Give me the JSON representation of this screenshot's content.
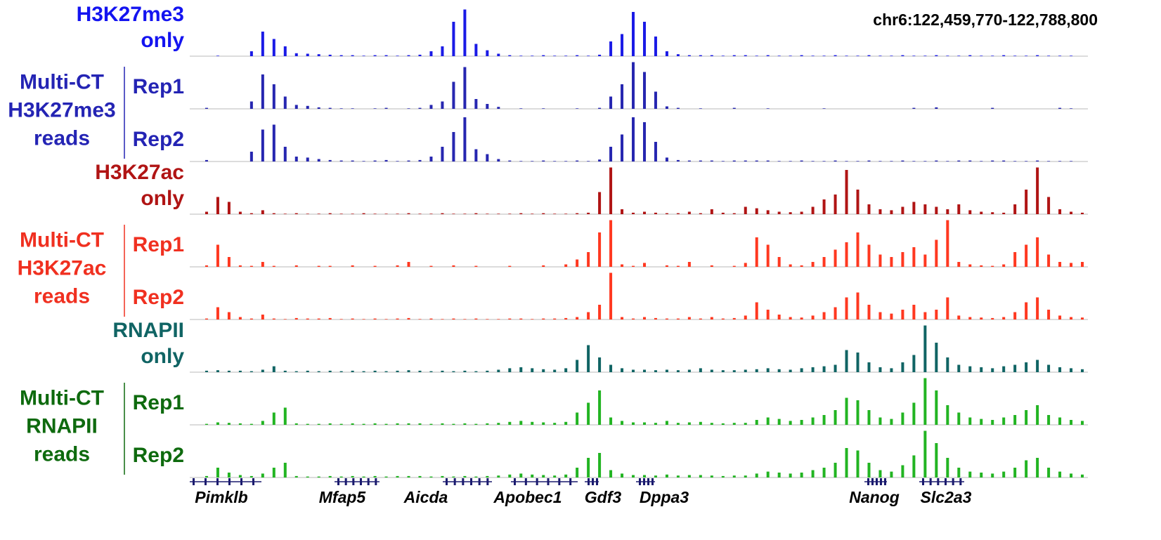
{
  "region": "chr6:122,459,770-122,788,800",
  "blocks": [
    {
      "label": [
        "H3K27me3",
        "only"
      ],
      "label_color": "#1414f0",
      "color": "#1a1ae6",
      "signal": [
        0,
        0,
        1,
        0,
        0,
        10,
        50,
        35,
        20,
        6,
        5,
        4,
        3,
        2,
        2,
        1,
        2,
        2,
        1,
        2,
        3,
        10,
        20,
        70,
        95,
        25,
        12,
        5,
        2,
        1,
        1,
        2,
        1,
        1,
        2,
        1,
        3,
        30,
        45,
        90,
        70,
        40,
        10,
        4,
        2,
        2,
        2,
        1,
        2,
        2,
        1,
        2,
        1,
        1,
        2,
        1,
        1,
        2,
        1,
        1,
        2,
        1,
        1,
        2,
        1,
        1,
        2,
        1,
        1,
        2,
        1,
        1,
        2,
        1,
        1,
        2,
        1,
        1,
        1,
        0
      ]
    },
    {
      "label": [
        "Multi-CT",
        "H3K27me3",
        "reads"
      ],
      "label_color": "#2424b4",
      "color": "#2626b0",
      "reps": [
        {
          "label": "Rep1",
          "signal": [
            0,
            2,
            0,
            0,
            0,
            15,
            70,
            50,
            25,
            8,
            6,
            3,
            2,
            1,
            1,
            0,
            1,
            2,
            0,
            1,
            2,
            8,
            15,
            55,
            85,
            20,
            10,
            4,
            0,
            1,
            0,
            1,
            0,
            0,
            1,
            0,
            2,
            25,
            50,
            95,
            75,
            35,
            5,
            2,
            0,
            1,
            0,
            0,
            2,
            0,
            0,
            1,
            0,
            0,
            0,
            0,
            1,
            0,
            0,
            0,
            0,
            0,
            0,
            0,
            2,
            0,
            3,
            0,
            0,
            0,
            0,
            2,
            0,
            0,
            0,
            0,
            0,
            2,
            1,
            0
          ]
        },
        {
          "label": "Rep2",
          "signal": [
            0,
            3,
            0,
            0,
            0,
            20,
            65,
            75,
            30,
            10,
            8,
            5,
            3,
            2,
            2,
            1,
            2,
            3,
            1,
            2,
            3,
            10,
            30,
            60,
            90,
            25,
            15,
            5,
            2,
            1,
            1,
            2,
            1,
            1,
            2,
            1,
            4,
            30,
            55,
            90,
            80,
            40,
            8,
            3,
            2,
            2,
            2,
            1,
            2,
            2,
            2,
            2,
            1,
            1,
            2,
            1,
            1,
            2,
            1,
            1,
            2,
            1,
            1,
            2,
            1,
            1,
            2,
            1,
            2,
            2,
            1,
            2,
            2,
            1,
            1,
            2,
            1,
            1,
            1,
            0
          ]
        }
      ]
    },
    {
      "label": [
        "H3K27ac",
        "only"
      ],
      "label_color": "#b01414",
      "color": "#b01414",
      "signal": [
        0,
        5,
        35,
        25,
        5,
        2,
        8,
        2,
        1,
        2,
        1,
        1,
        2,
        1,
        1,
        2,
        1,
        1,
        1,
        2,
        1,
        1,
        2,
        1,
        1,
        2,
        1,
        1,
        1,
        2,
        1,
        2,
        1,
        1,
        2,
        3,
        45,
        95,
        10,
        3,
        5,
        3,
        2,
        2,
        5,
        2,
        10,
        3,
        2,
        15,
        12,
        8,
        5,
        4,
        5,
        15,
        30,
        40,
        90,
        50,
        20,
        10,
        8,
        15,
        25,
        20,
        15,
        10,
        20,
        8,
        5,
        4,
        3,
        20,
        50,
        95,
        35,
        10,
        5,
        3
      ]
    },
    {
      "label": [
        "Multi-CT",
        "H3K27ac",
        "reads"
      ],
      "label_color": "#f03020",
      "color": "#ff3820",
      "reps": [
        {
          "label": "Rep1",
          "signal": [
            0,
            3,
            45,
            20,
            3,
            2,
            10,
            2,
            0,
            3,
            0,
            2,
            2,
            0,
            3,
            0,
            2,
            0,
            3,
            10,
            0,
            2,
            0,
            3,
            0,
            2,
            0,
            0,
            2,
            0,
            0,
            3,
            0,
            5,
            15,
            30,
            70,
            95,
            5,
            2,
            8,
            0,
            3,
            2,
            10,
            0,
            3,
            0,
            2,
            8,
            60,
            45,
            20,
            5,
            3,
            10,
            20,
            35,
            50,
            70,
            45,
            25,
            20,
            30,
            40,
            25,
            55,
            95,
            10,
            5,
            3,
            2,
            5,
            30,
            45,
            60,
            25,
            10,
            8,
            10
          ]
        },
        {
          "label": "Rep2",
          "signal": [
            0,
            2,
            25,
            15,
            5,
            2,
            10,
            2,
            1,
            3,
            2,
            2,
            3,
            1,
            2,
            1,
            2,
            1,
            2,
            3,
            1,
            2,
            1,
            2,
            1,
            2,
            1,
            1,
            2,
            2,
            1,
            2,
            2,
            3,
            5,
            15,
            30,
            95,
            5,
            2,
            5,
            3,
            2,
            2,
            5,
            2,
            5,
            2,
            3,
            8,
            35,
            20,
            10,
            5,
            4,
            8,
            15,
            25,
            45,
            55,
            30,
            15,
            12,
            20,
            30,
            15,
            20,
            45,
            8,
            5,
            4,
            3,
            5,
            15,
            35,
            45,
            20,
            8,
            5,
            4
          ]
        }
      ]
    },
    {
      "label": [
        "RNAPII",
        "only"
      ],
      "label_color": "#106464",
      "color": "#106464",
      "signal": [
        0,
        3,
        4,
        3,
        3,
        2,
        5,
        12,
        3,
        2,
        3,
        2,
        3,
        2,
        3,
        2,
        3,
        2,
        3,
        4,
        3,
        2,
        3,
        2,
        3,
        2,
        3,
        5,
        8,
        10,
        8,
        6,
        5,
        8,
        25,
        55,
        30,
        15,
        8,
        5,
        5,
        4,
        5,
        4,
        5,
        8,
        5,
        4,
        4,
        5,
        6,
        8,
        6,
        5,
        8,
        10,
        12,
        15,
        45,
        40,
        20,
        10,
        8,
        20,
        35,
        95,
        60,
        30,
        15,
        12,
        10,
        8,
        12,
        15,
        20,
        25,
        15,
        10,
        8,
        6
      ]
    },
    {
      "label": [
        "Multi-CT",
        "RNAPII",
        "reads"
      ],
      "label_color": "#0e6a0e",
      "color": "#22b422",
      "reps": [
        {
          "label": "Rep1",
          "signal": [
            0,
            2,
            5,
            4,
            3,
            2,
            8,
            25,
            35,
            3,
            2,
            2,
            3,
            2,
            3,
            2,
            3,
            2,
            3,
            3,
            3,
            2,
            3,
            2,
            3,
            2,
            3,
            4,
            6,
            8,
            6,
            5,
            4,
            6,
            25,
            45,
            70,
            15,
            8,
            5,
            5,
            4,
            8,
            4,
            5,
            6,
            4,
            3,
            4,
            4,
            10,
            15,
            12,
            8,
            10,
            15,
            20,
            30,
            55,
            50,
            30,
            15,
            12,
            25,
            45,
            95,
            70,
            40,
            25,
            15,
            12,
            10,
            15,
            20,
            30,
            40,
            20,
            15,
            10,
            8
          ]
        },
        {
          "label": "Rep2",
          "signal": [
            0,
            3,
            20,
            10,
            5,
            3,
            8,
            20,
            30,
            3,
            2,
            2,
            3,
            2,
            3,
            2,
            3,
            2,
            3,
            3,
            3,
            2,
            3,
            2,
            3,
            2,
            3,
            4,
            6,
            8,
            6,
            5,
            4,
            6,
            20,
            40,
            50,
            15,
            8,
            5,
            5,
            4,
            6,
            4,
            5,
            5,
            4,
            3,
            4,
            4,
            8,
            12,
            10,
            8,
            10,
            15,
            20,
            30,
            60,
            55,
            30,
            15,
            12,
            25,
            45,
            95,
            70,
            40,
            20,
            12,
            10,
            8,
            12,
            20,
            35,
            40,
            20,
            12,
            8,
            6
          ]
        }
      ]
    }
  ],
  "genes": [
    "Pimklb",
    "Mfap5",
    "Aicda",
    "Apobec1",
    "Gdf3",
    "Dppa3",
    "Nanog",
    "Slc2a3"
  ]
}
